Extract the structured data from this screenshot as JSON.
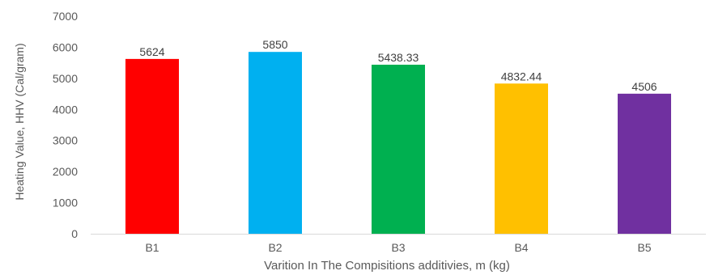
{
  "chart_data": {
    "type": "bar",
    "categories": [
      "B1",
      "B2",
      "B3",
      "B4",
      "B5"
    ],
    "values": [
      5624,
      5850,
      5438.33,
      4832.44,
      4506
    ],
    "data_labels": [
      "5624",
      "5850",
      "5438.33",
      "4832.44",
      "4506"
    ],
    "colors": [
      "#ff0000",
      "#00b0f0",
      "#00b050",
      "#ffc000",
      "#7030a0"
    ],
    "xlabel": "Varition In The Compisitions additivies, m (kg)",
    "ylabel": "Heating Value, HHV  (Cal/gram)",
    "ylim": [
      0,
      7000
    ],
    "yticks": [
      0,
      1000,
      2000,
      3000,
      4000,
      5000,
      6000,
      7000
    ],
    "ytick_labels": [
      "0",
      "1000",
      "2000",
      "3000",
      "4000",
      "5000",
      "6000",
      "7000"
    ],
    "grid": false,
    "legend": "none"
  }
}
